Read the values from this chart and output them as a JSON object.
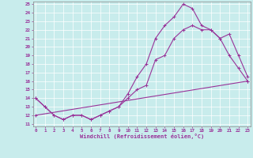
{
  "xlabel": "Windchill (Refroidissement éolien,°C)",
  "bg_color": "#c8ecec",
  "line_color": "#993399",
  "xmin": 0,
  "xmax": 23,
  "ymin": 11,
  "ymax": 25,
  "xticks": [
    0,
    1,
    2,
    3,
    4,
    5,
    6,
    7,
    8,
    9,
    10,
    11,
    12,
    13,
    14,
    15,
    16,
    17,
    18,
    19,
    20,
    21,
    22,
    23
  ],
  "yticks": [
    11,
    12,
    13,
    14,
    15,
    16,
    17,
    18,
    19,
    20,
    21,
    22,
    23,
    24,
    25
  ],
  "curve1_x": [
    0,
    1,
    2,
    3,
    4,
    5,
    6,
    7,
    8,
    9,
    10,
    11,
    12,
    13,
    14,
    15,
    16,
    17,
    18,
    19,
    20,
    21,
    22,
    23
  ],
  "curve1_y": [
    14,
    13,
    12,
    11.5,
    12,
    12,
    11.5,
    12,
    12.5,
    13,
    14,
    15,
    15.5,
    18.5,
    19,
    21,
    22,
    22.5,
    22,
    22,
    21,
    21.5,
    19,
    16.5
  ],
  "curve2_x": [
    0,
    1,
    2,
    3,
    4,
    5,
    6,
    7,
    8,
    9,
    10,
    11,
    12,
    13,
    14,
    15,
    16,
    17,
    18,
    19,
    20,
    21,
    22,
    23
  ],
  "curve2_y": [
    14,
    13,
    12,
    11.5,
    12,
    12,
    11.5,
    12,
    12.5,
    13,
    14.5,
    16.5,
    18,
    21,
    22.5,
    23.5,
    25,
    24.5,
    22.5,
    22,
    21,
    19,
    17.5,
    16
  ],
  "curve3_x": [
    0,
    23
  ],
  "curve3_y": [
    12,
    16
  ]
}
